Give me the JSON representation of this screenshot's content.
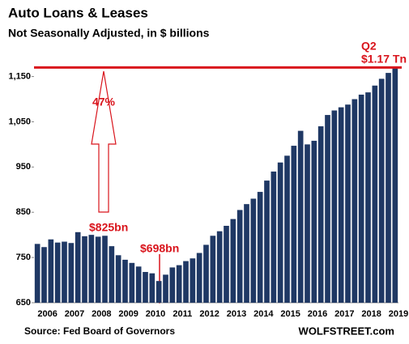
{
  "chart_data": {
    "type": "bar",
    "title": "Auto Loans & Leases",
    "subtitle": "Not Seasonally Adjusted, in $ billions",
    "source": "Source: Fed Board of Governors",
    "credit": "WOLFSTREET.com",
    "categories": [
      "2006",
      null,
      null,
      null,
      "2007",
      null,
      null,
      null,
      "2008",
      null,
      null,
      null,
      "2009",
      null,
      null,
      null,
      "2010",
      null,
      null,
      null,
      "2011",
      null,
      null,
      null,
      "2012",
      null,
      null,
      null,
      "2013",
      null,
      null,
      null,
      "2014",
      null,
      null,
      null,
      "2015",
      null,
      null,
      null,
      "2016",
      null,
      null,
      null,
      "2017",
      null,
      null,
      null,
      "2018",
      null,
      null,
      null,
      "2019",
      null
    ],
    "values": [
      780,
      773,
      790,
      783,
      785,
      782,
      806,
      797,
      800,
      796,
      798,
      775,
      755,
      745,
      738,
      730,
      718,
      715,
      698,
      712,
      728,
      733,
      742,
      748,
      760,
      778,
      798,
      808,
      820,
      835,
      855,
      868,
      880,
      895,
      920,
      940,
      960,
      975,
      997,
      1030,
      1000,
      1008,
      1040,
      1065,
      1075,
      1082,
      1088,
      1100,
      1110,
      1115,
      1130,
      1145,
      1158,
      1170
    ],
    "color": "#1f3864",
    "reference_line": 1170,
    "reference_color": "#d9141c",
    "ylim": [
      650,
      1185
    ],
    "yticks": [
      650,
      750,
      850,
      950,
      {
        "value": 1050,
        "label": "1,050"
      },
      {
        "value": 1150,
        "label": "1,150"
      }
    ],
    "annotations": [
      "Q2",
      "$1.17 Tn",
      "47%",
      "$825bn",
      "$698bn"
    ]
  }
}
